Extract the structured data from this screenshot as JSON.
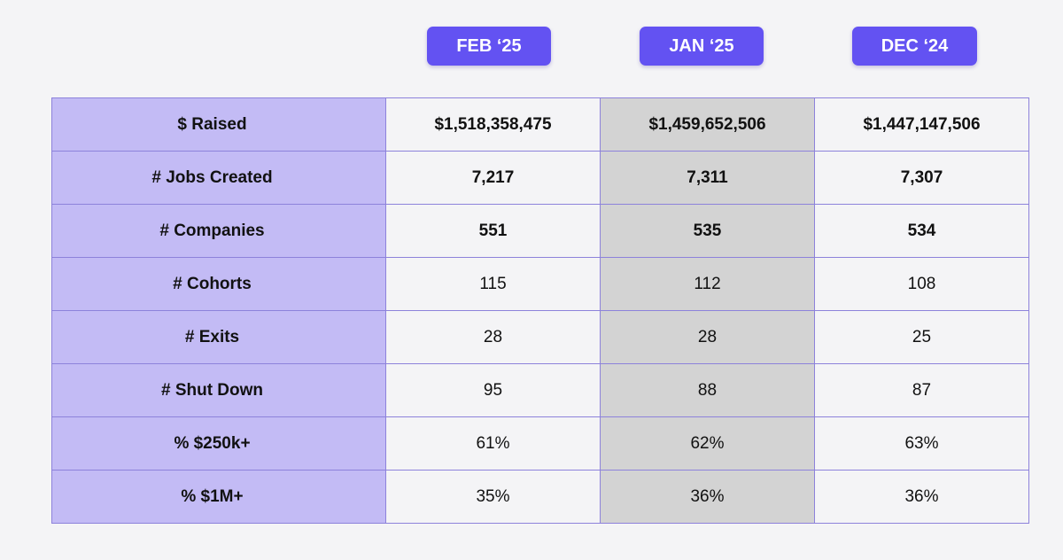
{
  "columns": [
    "FEB ‘25",
    "JAN ‘25",
    "DEC ‘24"
  ],
  "rows": [
    {
      "label": "$ Raised",
      "values": [
        "$1,518,358,475",
        "$1,459,652,506",
        "$1,447,147,506"
      ]
    },
    {
      "label": "# Jobs Created",
      "values": [
        "7,217",
        "7,311",
        "7,307"
      ]
    },
    {
      "label": "# Companies",
      "values": [
        "551",
        "535",
        "534"
      ]
    },
    {
      "label": "# Cohorts",
      "values": [
        "115",
        "112",
        "108"
      ]
    },
    {
      "label": "# Exits",
      "values": [
        "28",
        "28",
        "25"
      ]
    },
    {
      "label": "# Shut Down",
      "values": [
        "95",
        "88",
        "87"
      ]
    },
    {
      "label": "% $250k+",
      "values": [
        "61%",
        "62%",
        "63%"
      ]
    },
    {
      "label": "% $1M+",
      "values": [
        "35%",
        "36%",
        "36%"
      ]
    }
  ],
  "colors": {
    "accent": "#6352f2",
    "label_bg": "#c3bbf5",
    "highlight_bg": "#d3d3d3",
    "border": "#8d82db"
  }
}
